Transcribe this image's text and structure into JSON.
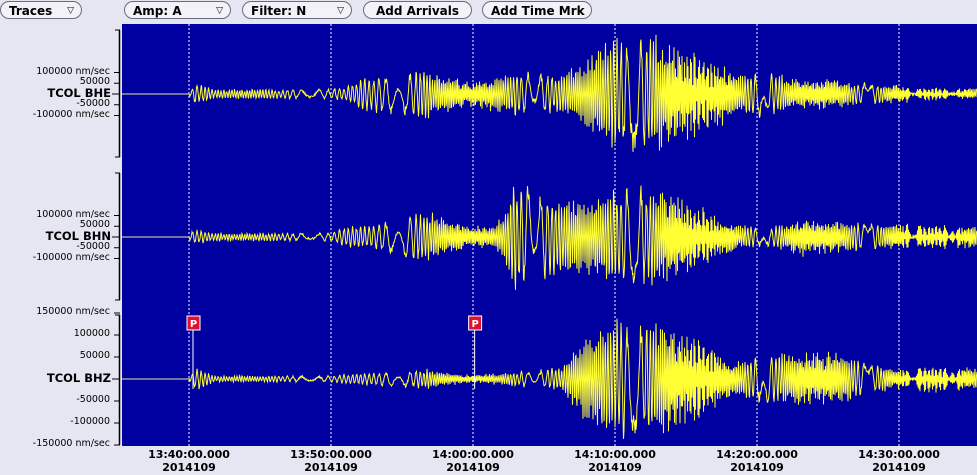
{
  "toolbar": {
    "traces_label": "Traces",
    "amp_label": "Amp: A",
    "filter_label": "Filter: N",
    "add_arrivals_label": "Add Arrivals",
    "add_time_mark_label": "Add Time Mrk"
  },
  "traces": [
    {
      "name": "TCOL BHE",
      "ticks": [
        {
          "value": 100000,
          "label": "100000 nm/sec"
        },
        {
          "value": 50000,
          "label": "50000"
        },
        {
          "value": -50000,
          "label": "-50000"
        },
        {
          "value": -100000,
          "label": "-100000 nm/sec"
        }
      ]
    },
    {
      "name": "TCOL BHN",
      "ticks": [
        {
          "value": 100000,
          "label": "100000 nm/sec"
        },
        {
          "value": 50000,
          "label": "50000"
        },
        {
          "value": -50000,
          "label": "-50000"
        },
        {
          "value": -100000,
          "label": "-100000 nm/sec"
        }
      ]
    },
    {
      "name": "TCOL BHZ",
      "ticks": [
        {
          "value": 150000,
          "label": "150000 nm/sec"
        },
        {
          "value": 100000,
          "label": "100000"
        },
        {
          "value": 50000,
          "label": "50000"
        },
        {
          "value": -50000,
          "label": "-50000"
        },
        {
          "value": -100000,
          "label": "-100000"
        },
        {
          "value": -150000,
          "label": "-150000 nm/sec"
        }
      ]
    }
  ],
  "time_axis": [
    {
      "time": "13:40:00.000",
      "date": "2014109"
    },
    {
      "time": "13:50:00.000",
      "date": "2014109"
    },
    {
      "time": "14:00:00.000",
      "date": "2014109"
    },
    {
      "time": "14:10:00.000",
      "date": "2014109"
    },
    {
      "time": "14:20:00.000",
      "date": "2014109"
    },
    {
      "time": "14:30:00.000",
      "date": "2014109"
    }
  ],
  "arrivals": [
    {
      "label": "P",
      "time": "13:40:00"
    },
    {
      "label": "P",
      "time": "13:59:50"
    }
  ],
  "colors": {
    "plot_background": "#0000a0",
    "trace": "#ffff33",
    "time_mark": "#ffffff",
    "arrival_flag": "#e01030"
  }
}
